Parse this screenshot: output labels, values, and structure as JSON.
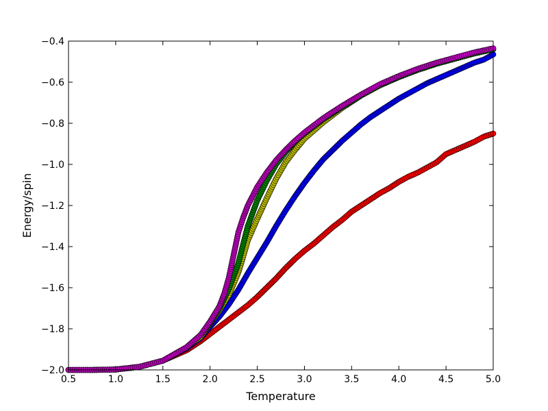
{
  "chart_data": {
    "type": "scatter",
    "title": "",
    "xlabel": "Temperature",
    "ylabel": "Energy/spin",
    "xlim": [
      0.5,
      5.0
    ],
    "ylim": [
      -2.0,
      -0.4
    ],
    "grid": false,
    "legend": "none",
    "x_ticks": [
      "0.5",
      "1.0",
      "1.5",
      "2.0",
      "2.5",
      "3.0",
      "3.5",
      "4.0",
      "4.5",
      "5.0"
    ],
    "y_ticks": [
      "−2.0",
      "−1.8",
      "−1.6",
      "−1.4",
      "−1.2",
      "−1.0",
      "−0.8",
      "−0.6",
      "−0.4"
    ],
    "x_tick_values": [
      0.5,
      1.0,
      1.5,
      2.0,
      2.5,
      3.0,
      3.5,
      4.0,
      4.5,
      5.0
    ],
    "y_tick_values": [
      -2.0,
      -1.8,
      -1.6,
      -1.4,
      -1.2,
      -1.0,
      -0.8,
      -0.6,
      -0.4
    ],
    "series": [
      {
        "color": "#ff0000",
        "points": [
          [
            0.5,
            -2.0
          ],
          [
            0.75,
            -2.0
          ],
          [
            1.0,
            -1.998
          ],
          [
            1.25,
            -1.985
          ],
          [
            1.5,
            -1.955
          ],
          [
            1.75,
            -1.905
          ],
          [
            1.9,
            -1.86
          ],
          [
            2.0,
            -1.825
          ],
          [
            2.1,
            -1.79
          ],
          [
            2.2,
            -1.755
          ],
          [
            2.3,
            -1.72
          ],
          [
            2.4,
            -1.685
          ],
          [
            2.5,
            -1.645
          ],
          [
            2.6,
            -1.6
          ],
          [
            2.7,
            -1.555
          ],
          [
            2.8,
            -1.505
          ],
          [
            2.9,
            -1.46
          ],
          [
            3.0,
            -1.42
          ],
          [
            3.1,
            -1.385
          ],
          [
            3.2,
            -1.345
          ],
          [
            3.3,
            -1.305
          ],
          [
            3.4,
            -1.27
          ],
          [
            3.5,
            -1.23
          ],
          [
            3.6,
            -1.2
          ],
          [
            3.7,
            -1.17
          ],
          [
            3.8,
            -1.14
          ],
          [
            3.9,
            -1.115
          ],
          [
            4.0,
            -1.085
          ],
          [
            4.1,
            -1.06
          ],
          [
            4.2,
            -1.04
          ],
          [
            4.3,
            -1.015
          ],
          [
            4.4,
            -0.99
          ],
          [
            4.5,
            -0.95
          ],
          [
            4.6,
            -0.93
          ],
          [
            4.7,
            -0.91
          ],
          [
            4.8,
            -0.89
          ],
          [
            4.9,
            -0.865
          ],
          [
            5.0,
            -0.85
          ]
        ]
      },
      {
        "color": "#0000ff",
        "points": [
          [
            0.5,
            -2.0
          ],
          [
            0.75,
            -2.0
          ],
          [
            1.0,
            -1.998
          ],
          [
            1.25,
            -1.985
          ],
          [
            1.5,
            -1.955
          ],
          [
            1.75,
            -1.895
          ],
          [
            1.9,
            -1.845
          ],
          [
            2.0,
            -1.79
          ],
          [
            2.1,
            -1.74
          ],
          [
            2.2,
            -1.68
          ],
          [
            2.3,
            -1.61
          ],
          [
            2.4,
            -1.53
          ],
          [
            2.5,
            -1.455
          ],
          [
            2.6,
            -1.38
          ],
          [
            2.7,
            -1.3
          ],
          [
            2.8,
            -1.225
          ],
          [
            2.9,
            -1.155
          ],
          [
            3.0,
            -1.09
          ],
          [
            3.1,
            -1.03
          ],
          [
            3.2,
            -0.975
          ],
          [
            3.3,
            -0.93
          ],
          [
            3.4,
            -0.885
          ],
          [
            3.5,
            -0.845
          ],
          [
            3.6,
            -0.805
          ],
          [
            3.7,
            -0.77
          ],
          [
            3.8,
            -0.74
          ],
          [
            3.9,
            -0.71
          ],
          [
            4.0,
            -0.68
          ],
          [
            4.1,
            -0.655
          ],
          [
            4.2,
            -0.63
          ],
          [
            4.3,
            -0.605
          ],
          [
            4.4,
            -0.585
          ],
          [
            4.5,
            -0.565
          ],
          [
            4.6,
            -0.545
          ],
          [
            4.7,
            -0.525
          ],
          [
            4.8,
            -0.505
          ],
          [
            4.9,
            -0.49
          ],
          [
            5.0,
            -0.465
          ]
        ]
      },
      {
        "color": "#bfbf00",
        "points": [
          [
            0.5,
            -2.0
          ],
          [
            0.75,
            -2.0
          ],
          [
            1.0,
            -1.998
          ],
          [
            1.25,
            -1.985
          ],
          [
            1.5,
            -1.955
          ],
          [
            1.75,
            -1.89
          ],
          [
            1.9,
            -1.84
          ],
          [
            2.0,
            -1.775
          ],
          [
            2.1,
            -1.71
          ],
          [
            2.2,
            -1.635
          ],
          [
            2.3,
            -1.525
          ],
          [
            2.35,
            -1.45
          ],
          [
            2.4,
            -1.37
          ],
          [
            2.5,
            -1.265
          ],
          [
            2.6,
            -1.165
          ],
          [
            2.7,
            -1.07
          ],
          [
            2.8,
            -0.99
          ],
          [
            2.9,
            -0.93
          ],
          [
            3.0,
            -0.875
          ],
          [
            3.1,
            -0.835
          ],
          [
            3.2,
            -0.795
          ],
          [
            3.3,
            -0.76
          ],
          [
            3.4,
            -0.725
          ],
          [
            3.5,
            -0.695
          ],
          [
            3.6,
            -0.665
          ],
          [
            3.7,
            -0.64
          ],
          [
            3.8,
            -0.615
          ],
          [
            3.9,
            -0.595
          ],
          [
            4.0,
            -0.575
          ],
          [
            4.2,
            -0.54
          ],
          [
            4.4,
            -0.51
          ],
          [
            4.6,
            -0.485
          ],
          [
            4.8,
            -0.46
          ],
          [
            5.0,
            -0.44
          ]
        ]
      },
      {
        "color": "#008000",
        "points": [
          [
            0.5,
            -2.0
          ],
          [
            0.75,
            -2.0
          ],
          [
            1.0,
            -1.998
          ],
          [
            1.25,
            -1.985
          ],
          [
            1.5,
            -1.955
          ],
          [
            1.75,
            -1.89
          ],
          [
            1.9,
            -1.83
          ],
          [
            2.0,
            -1.77
          ],
          [
            2.1,
            -1.7
          ],
          [
            2.2,
            -1.605
          ],
          [
            2.3,
            -1.48
          ],
          [
            2.35,
            -1.39
          ],
          [
            2.4,
            -1.3
          ],
          [
            2.5,
            -1.175
          ],
          [
            2.6,
            -1.08
          ],
          [
            2.7,
            -1.0
          ],
          [
            2.8,
            -0.94
          ],
          [
            2.9,
            -0.89
          ],
          [
            3.0,
            -0.85
          ],
          [
            3.2,
            -0.78
          ],
          [
            3.4,
            -0.72
          ],
          [
            3.6,
            -0.665
          ],
          [
            3.8,
            -0.615
          ],
          [
            4.0,
            -0.575
          ],
          [
            4.2,
            -0.54
          ],
          [
            4.4,
            -0.51
          ],
          [
            4.6,
            -0.485
          ],
          [
            4.8,
            -0.46
          ],
          [
            5.0,
            -0.44
          ]
        ]
      },
      {
        "color": "#bf00bf",
        "points": [
          [
            0.5,
            -2.0
          ],
          [
            0.75,
            -2.0
          ],
          [
            1.0,
            -1.998
          ],
          [
            1.25,
            -1.985
          ],
          [
            1.5,
            -1.955
          ],
          [
            1.75,
            -1.89
          ],
          [
            1.9,
            -1.83
          ],
          [
            2.0,
            -1.765
          ],
          [
            2.1,
            -1.69
          ],
          [
            2.15,
            -1.63
          ],
          [
            2.2,
            -1.55
          ],
          [
            2.25,
            -1.44
          ],
          [
            2.3,
            -1.33
          ],
          [
            2.35,
            -1.26
          ],
          [
            2.4,
            -1.2
          ],
          [
            2.5,
            -1.11
          ],
          [
            2.6,
            -1.04
          ],
          [
            2.7,
            -0.98
          ],
          [
            2.8,
            -0.93
          ],
          [
            2.9,
            -0.885
          ],
          [
            3.0,
            -0.845
          ],
          [
            3.2,
            -0.775
          ],
          [
            3.4,
            -0.715
          ],
          [
            3.6,
            -0.66
          ],
          [
            3.8,
            -0.61
          ],
          [
            4.0,
            -0.57
          ],
          [
            4.2,
            -0.535
          ],
          [
            4.4,
            -0.505
          ],
          [
            4.6,
            -0.48
          ],
          [
            4.8,
            -0.455
          ],
          [
            5.0,
            -0.435
          ]
        ]
      }
    ]
  }
}
